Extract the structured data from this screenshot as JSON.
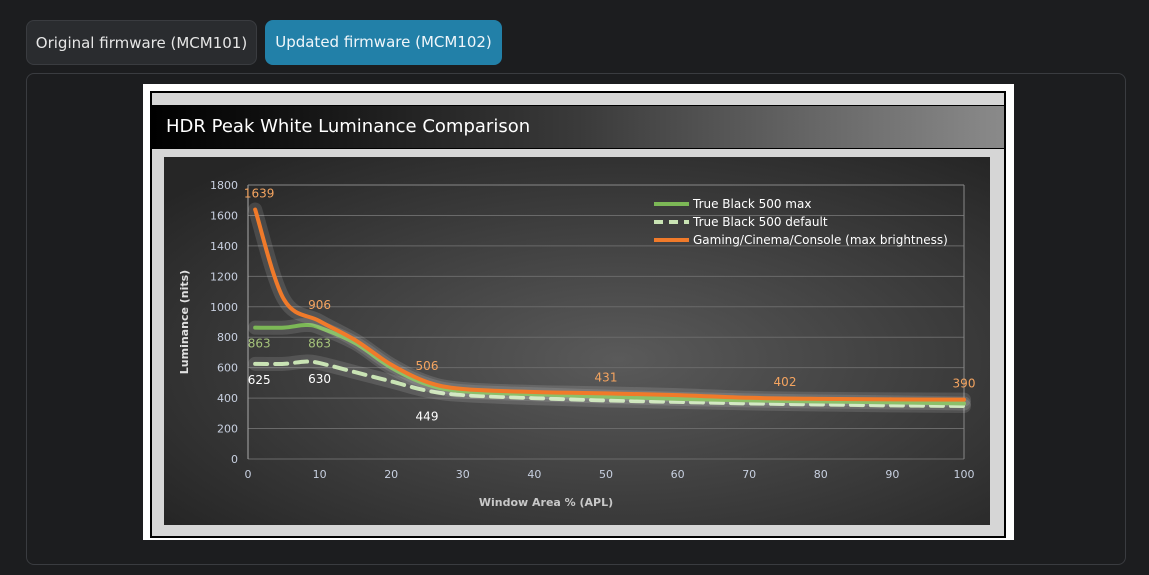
{
  "tabs": [
    {
      "label": "Original firmware (MCM101)"
    },
    {
      "label": "Updated firmware (MCM102)",
      "active": true
    }
  ],
  "chart_data": {
    "type": "line",
    "title": "HDR Peak White Luminance Comparison",
    "xlabel": "Window Area % (APL)",
    "ylabel": "Luminance (nits)",
    "xlim": [
      0,
      100
    ],
    "ylim": [
      0,
      1800
    ],
    "xticks": [
      0,
      10,
      20,
      30,
      40,
      50,
      60,
      70,
      80,
      90,
      100
    ],
    "yticks": [
      0,
      200,
      400,
      600,
      800,
      1000,
      1200,
      1400,
      1600,
      1800
    ],
    "grid": true,
    "legend": "top-right",
    "series": [
      {
        "name": "True Black 500 max",
        "color": "#7cb856",
        "style": "solid",
        "x": [
          1,
          5,
          8,
          10,
          15,
          20,
          25,
          30,
          40,
          50,
          60,
          70,
          80,
          90,
          100
        ],
        "y": [
          863,
          863,
          880,
          863,
          760,
          600,
          490,
          445,
          425,
          410,
          395,
          385,
          378,
          372,
          365
        ],
        "labels": [
          {
            "x": 1,
            "value": "863"
          },
          {
            "x": 10,
            "value": "863"
          }
        ]
      },
      {
        "name": "True Black 500 default",
        "color": "#c9e3b4",
        "style": "dashed",
        "x": [
          1,
          5,
          8,
          10,
          15,
          20,
          25,
          30,
          40,
          50,
          60,
          70,
          80,
          90,
          100
        ],
        "y": [
          625,
          625,
          640,
          630,
          570,
          510,
          449,
          420,
          400,
          385,
          375,
          365,
          358,
          352,
          348
        ],
        "labels": [
          {
            "x": 1,
            "value": "625"
          },
          {
            "x": 10,
            "value": "630"
          },
          {
            "x": 25,
            "value": "449"
          }
        ]
      },
      {
        "name": "Gaming/Cinema/Console (max brightness)",
        "color": "#f07a2a",
        "style": "solid",
        "x": [
          1,
          5,
          10,
          15,
          20,
          25,
          30,
          40,
          50,
          60,
          70,
          80,
          90,
          100
        ],
        "y": [
          1639,
          1050,
          906,
          780,
          620,
          506,
          460,
          440,
          431,
          420,
          402,
          395,
          392,
          390
        ],
        "labels": [
          {
            "x": 1,
            "value": "1639"
          },
          {
            "x": 10,
            "value": "906"
          },
          {
            "x": 25,
            "value": "506"
          },
          {
            "x": 50,
            "value": "431"
          },
          {
            "x": 75,
            "value": "402"
          },
          {
            "x": 100,
            "value": "390"
          }
        ]
      }
    ]
  }
}
